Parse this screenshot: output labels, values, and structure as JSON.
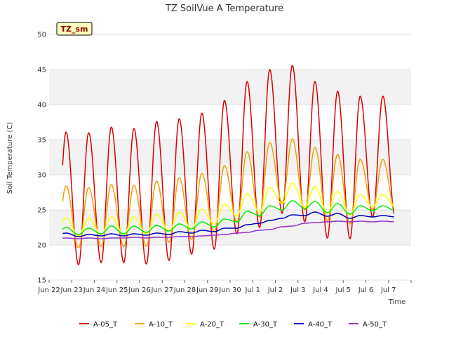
{
  "chart_data": {
    "type": "line",
    "title": "TZ SoilVue A Temperature",
    "xlabel": "Time",
    "ylabel": "Soil Temperature (C)",
    "badge": "TZ_sm",
    "ylim": [
      15,
      50
    ],
    "yticks": [
      15,
      20,
      25,
      30,
      35,
      40,
      45,
      50
    ],
    "xlim": [
      0,
      16
    ],
    "xticks": [
      0,
      1,
      2,
      3,
      4,
      5,
      6,
      7,
      8,
      9,
      10,
      11,
      12,
      13,
      14,
      15,
      16
    ],
    "xtick_labels": [
      "Jun 22",
      "Jun 23",
      "Jun 24",
      "Jun 25",
      "Jun 26",
      "Jun 27",
      "Jun 28",
      "Jun 29",
      "Jun 30",
      "Jul 1",
      "Jul 2",
      "Jul 3",
      "Jul 4",
      "Jul 5",
      "Jul 6",
      "Jul 7",
      ""
    ],
    "grid": "horizontal bands",
    "legend_position": "bottom",
    "series": [
      {
        "name": "A-05_T",
        "color": "#dd0000",
        "min": [
          17.1,
          17.2,
          17.5,
          17.5,
          17.3,
          17.8,
          18.7,
          19.4,
          21.6,
          22.5,
          24.5,
          23.3,
          21.0,
          20.9,
          24.0
        ],
        "max": [
          36.1,
          36.0,
          36.8,
          36.6,
          37.6,
          38.0,
          38.8,
          40.6,
          43.3,
          45.0,
          45.6,
          43.3,
          41.9,
          41.2
        ]
      },
      {
        "name": "A-10_T",
        "color": "#f0a000",
        "min": [
          19.6,
          19.6,
          19.8,
          19.8,
          19.8,
          20.4,
          20.8,
          21.9,
          23.3,
          24.0,
          26.0,
          25.0,
          23.4,
          23.0,
          25.0
        ],
        "max": [
          28.4,
          28.2,
          28.6,
          28.5,
          29.1,
          29.6,
          30.2,
          31.3,
          33.3,
          34.6,
          35.1,
          33.9,
          32.9,
          32.2
        ]
      },
      {
        "name": "A-20_T",
        "color": "#ffff00",
        "min": [
          21.2,
          21.3,
          21.5,
          21.5,
          21.6,
          22.0,
          22.3,
          23.0,
          24.2,
          24.7,
          25.9,
          25.4,
          24.6,
          24.3,
          25.5
        ],
        "max": [
          23.9,
          23.8,
          24.0,
          24.0,
          24.4,
          24.7,
          25.1,
          25.8,
          27.3,
          28.2,
          28.8,
          28.3,
          27.6,
          27.2
        ]
      },
      {
        "name": "A-30_T",
        "color": "#00ee00",
        "min": [
          21.5,
          21.5,
          21.6,
          21.6,
          21.8,
          22.0,
          22.3,
          22.6,
          23.3,
          24.2,
          25.0,
          25.2,
          24.6,
          24.4,
          24.9
        ],
        "max": [
          22.5,
          22.4,
          22.7,
          22.7,
          22.8,
          23.0,
          23.3,
          23.7,
          24.8,
          25.6,
          26.3,
          26.2,
          25.9,
          25.6
        ]
      },
      {
        "name": "A-40_T",
        "color": "#0000bb",
        "min": [
          21.5,
          21.2,
          21.3,
          21.3,
          21.4,
          21.5,
          21.7,
          21.9,
          22.4,
          23.1,
          23.8,
          24.2,
          24.1,
          23.8,
          24.0
        ],
        "max": [
          21.7,
          21.5,
          21.6,
          21.6,
          21.7,
          21.9,
          22.1,
          22.4,
          22.9,
          23.5,
          24.3,
          24.7,
          24.5,
          24.2
        ]
      },
      {
        "name": "A-50_T",
        "color": "#9933cc",
        "min": [
          20.9,
          20.9,
          20.9,
          21.0,
          21.0,
          21.1,
          21.2,
          21.4,
          21.7,
          22.1,
          22.6,
          23.1,
          23.3,
          23.3,
          23.3
        ],
        "max": [
          21.0,
          21.0,
          21.0,
          21.1,
          21.1,
          21.2,
          21.3,
          21.5,
          21.8,
          22.2,
          22.7,
          23.2,
          23.4,
          23.4
        ]
      }
    ]
  }
}
